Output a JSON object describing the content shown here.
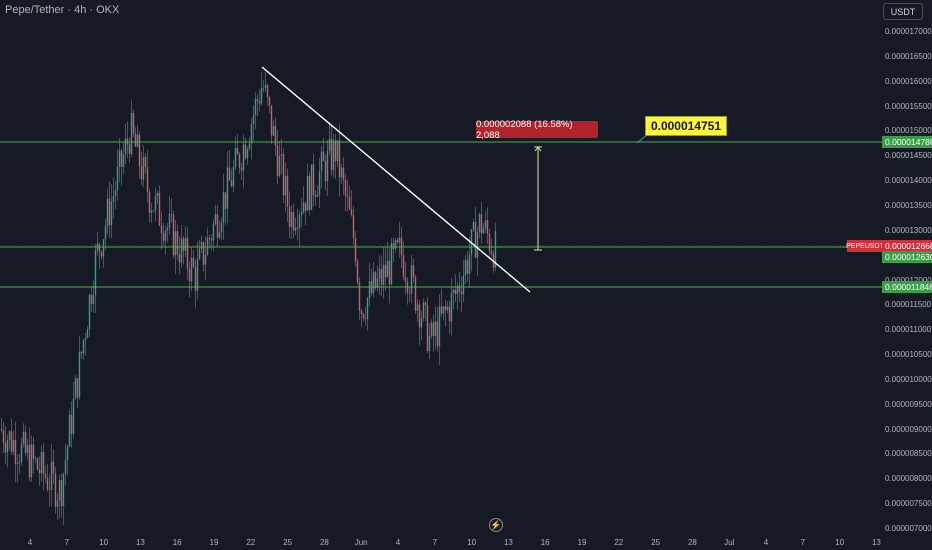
{
  "header": {
    "symbol_title": "Pepe/Tether · 4h · OKX",
    "currency": "USDT"
  },
  "price_axis": {
    "ticks": [
      "0.000017000",
      "0.000016500",
      "0.000016000",
      "0.000015500",
      "0.000015000",
      "0.000014500",
      "0.000014000",
      "0.000013500",
      "0.000013000",
      "0.000012500",
      "0.000012000",
      "0.000011500",
      "0.000011000",
      "0.000010500",
      "0.000010000",
      "0.000009500",
      "0.000009000",
      "0.000008500",
      "0.000008000",
      "0.000007500",
      "0.000007000"
    ]
  },
  "time_axis": {
    "ticks": [
      "4",
      "7",
      "10",
      "13",
      "16",
      "19",
      "22",
      "25",
      "28",
      "Jun",
      "4",
      "7",
      "10",
      "13",
      "16",
      "19",
      "22",
      "25",
      "28",
      "Jul",
      "4",
      "7",
      "10",
      "13"
    ]
  },
  "price_labels": {
    "upper_level": "0.000014788",
    "symbol": "PEPEUSDT",
    "current_price": "0.000012668",
    "middle_level": "0.000012630",
    "lower_level": "0.000011846"
  },
  "annotations": {
    "measure": "0.000002088 (16.58%) 2,088",
    "target": "0.000014751"
  },
  "icons": {
    "bolt": "lightning-icon"
  },
  "colors": {
    "background": "#161a25",
    "up_candle": "#26a69a",
    "down_candle": "#ef5350",
    "level_line": "#4caf50",
    "trendline": "#ffffff",
    "measure_box": "#b2222c",
    "target_box": "#fff63d"
  },
  "chart_data": {
    "type": "candlestick",
    "series_summary": {
      "x": [
        "May 2",
        "May 7",
        "May 10",
        "May 13",
        "May 15",
        "May 19",
        "May 22",
        "May 23",
        "May 25",
        "May 28",
        "May 30",
        "Jun 1",
        "Jun 4",
        "Jun 6",
        "Jun 7",
        "Jun 9",
        "Jun 10",
        "Jun 11"
      ],
      "close": [
        9e-06,
        7.7e-06,
        1.25e-05,
        1.52e-05,
        1.38e-05,
        1.22e-05,
        1.5e-05,
        1.62e-05,
        1.34e-05,
        1.48e-05,
        1.28e-05,
        1.15e-05,
        1.27e-05,
        1.15e-05,
        1.08e-05,
        1.18e-05,
        1.33e-05,
        1.27e-05
      ]
    },
    "horizontal_levels": [
      1.4788e-05,
      1.263e-05,
      1.1846e-05
    ],
    "current_price": 1.2668e-05,
    "ylim": [
      7e-06,
      1.73e-05
    ],
    "grid": false
  }
}
